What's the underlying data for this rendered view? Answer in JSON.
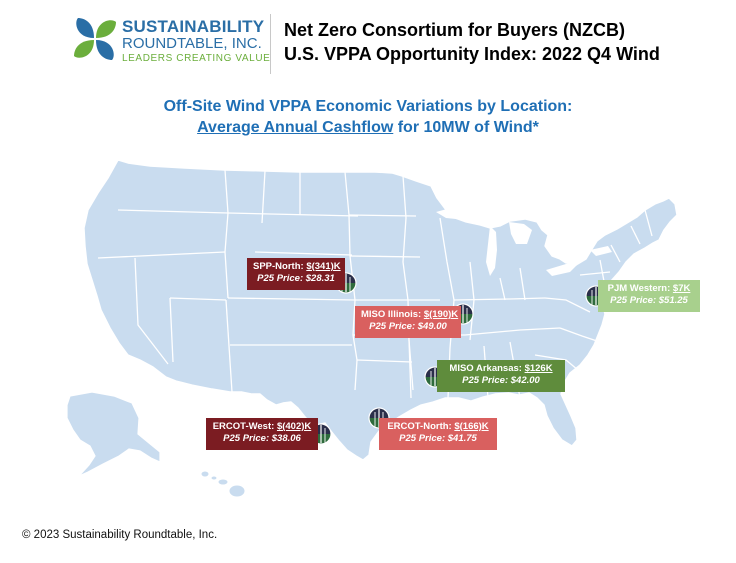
{
  "header": {
    "logo": {
      "name_line1": "SUSTAINABILITY",
      "name_line2": "ROUNDTABLE, INC.",
      "tagline": "LEADERS CREATING VALUE"
    },
    "title_line1": "Net Zero Consortium for Buyers (NZCB)",
    "title_line2": "U.S. VPPA Opportunity Index: 2022 Q4 Wind"
  },
  "subtitle": {
    "line1": "Off-Site Wind VPPA Economic Variations by Location:",
    "line2_underlined": "Average Annual Cashflow",
    "line2_rest": " for 10MW of Wind*"
  },
  "locations": [
    {
      "region": "SPP-North: ",
      "cashflow": "$(341)K",
      "price": "P25 Price: $28.31",
      "color": "#7b1c22"
    },
    {
      "region": "MISO Illinois: ",
      "cashflow": "$(190)K",
      "price": "P25 Price: $49.00",
      "color": "#d9605f"
    },
    {
      "region": "PJM Western: ",
      "cashflow": "$7K",
      "price": "P25 Price: $51.25",
      "color": "#a8d08d"
    },
    {
      "region": "MISO Arkansas: ",
      "cashflow": "$126K",
      "price": "P25 Price: $42.00",
      "color": "#5f8c3c"
    },
    {
      "region": "ERCOT-West: ",
      "cashflow": "$(402)K",
      "price": "P25 Price: $38.06",
      "color": "#7b1c22"
    },
    {
      "region": "ERCOT-North: ",
      "cashflow": "$(166)K",
      "price": "P25 Price: $41.75",
      "color": "#d9605f"
    }
  ],
  "colors": {
    "map_fill": "#c9dcef",
    "map_stroke": "#ffffff",
    "title_blue": "#1f6fb5"
  },
  "icons": [
    "wind-turbine-icon"
  ],
  "footer": "© 2023 Sustainability Roundtable, Inc."
}
